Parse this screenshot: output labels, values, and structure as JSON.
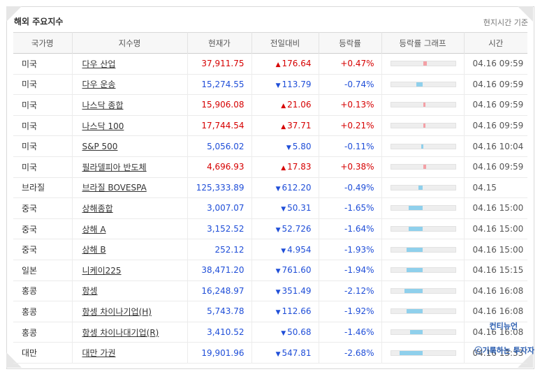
{
  "header": {
    "title": "해외 주요지수",
    "note": "현지시간 기준"
  },
  "columns": [
    "국가명",
    "지수명",
    "현재가",
    "전일대비",
    "등락률",
    "등락률 그래프",
    "시간"
  ],
  "rows": [
    {
      "country": "미국",
      "name": "다우 산업",
      "price": "37,911.75",
      "dir": "up",
      "change": "176.64",
      "rate": "+0.47%",
      "pct": 0.47,
      "time": "04.16 09:59"
    },
    {
      "country": "미국",
      "name": "다우 운송",
      "price": "15,274.55",
      "dir": "down",
      "change": "113.79",
      "rate": "-0.74%",
      "pct": -0.74,
      "time": "04.16 09:59"
    },
    {
      "country": "미국",
      "name": "나스닥 종합",
      "price": "15,906.08",
      "dir": "up",
      "change": "21.06",
      "rate": "+0.13%",
      "pct": 0.13,
      "time": "04.16 09:59"
    },
    {
      "country": "미국",
      "name": "나스닥 100",
      "price": "17,744.54",
      "dir": "up",
      "change": "37.71",
      "rate": "+0.21%",
      "pct": 0.21,
      "time": "04.16 09:59"
    },
    {
      "country": "미국",
      "name": "S&P 500",
      "price": "5,056.02",
      "dir": "down",
      "change": "5.80",
      "rate": "-0.11%",
      "pct": -0.11,
      "time": "04.16 10:04"
    },
    {
      "country": "미국",
      "name": "필라델피아 반도체",
      "price": "4,696.93",
      "dir": "up",
      "change": "17.83",
      "rate": "+0.38%",
      "pct": 0.38,
      "time": "04.16 09:59"
    },
    {
      "country": "브라질",
      "name": "브라질 BOVESPA",
      "price": "125,333.89",
      "dir": "down",
      "change": "612.20",
      "rate": "-0.49%",
      "pct": -0.49,
      "time": "04.15"
    },
    {
      "country": "중국",
      "name": "상해종합",
      "price": "3,007.07",
      "dir": "down",
      "change": "50.31",
      "rate": "-1.65%",
      "pct": -1.65,
      "time": "04.16 15:00",
      "sep": true
    },
    {
      "country": "중국",
      "name": "상해 A",
      "price": "3,152.52",
      "dir": "down",
      "change": "52.726",
      "rate": "-1.64%",
      "pct": -1.64,
      "time": "04.16 15:00"
    },
    {
      "country": "중국",
      "name": "상해 B",
      "price": "252.12",
      "dir": "down",
      "change": "4.954",
      "rate": "-1.93%",
      "pct": -1.93,
      "time": "04.16 15:00"
    },
    {
      "country": "일본",
      "name": "니케이225",
      "price": "38,471.20",
      "dir": "down",
      "change": "761.60",
      "rate": "-1.94%",
      "pct": -1.94,
      "time": "04.16 15:15"
    },
    {
      "country": "홍콩",
      "name": "항셍",
      "price": "16,248.97",
      "dir": "down",
      "change": "351.49",
      "rate": "-2.12%",
      "pct": -2.12,
      "time": "04.16 16:08"
    },
    {
      "country": "홍콩",
      "name": "항셍 차이나기업(H)",
      "price": "5,743.78",
      "dir": "down",
      "change": "112.66",
      "rate": "-1.92%",
      "pct": -1.92,
      "time": "04.16 16:08"
    },
    {
      "country": "홍콩",
      "name": "항셍 차이나대기업(R)",
      "price": "3,410.52",
      "dir": "down",
      "change": "50.68",
      "rate": "-1.46%",
      "pct": -1.46,
      "time": "04.16 16:08"
    },
    {
      "country": "대만",
      "name": "대만 가권",
      "price": "19,901.96",
      "dir": "down",
      "change": "547.81",
      "rate": "-2.68%",
      "pct": -2.68,
      "time": "04.16 13:33"
    }
  ],
  "watermark": {
    "line1": "컨티뉴언",
    "line2": "ⓒ기록하는 투자자"
  },
  "colors": {
    "up": "#d60000",
    "down": "#1f4ed8",
    "bar_up": "#f4a0a6",
    "bar_down": "#8fd0ec"
  },
  "icons": {
    "up": "triangle-up-icon",
    "down": "triangle-down-icon"
  }
}
